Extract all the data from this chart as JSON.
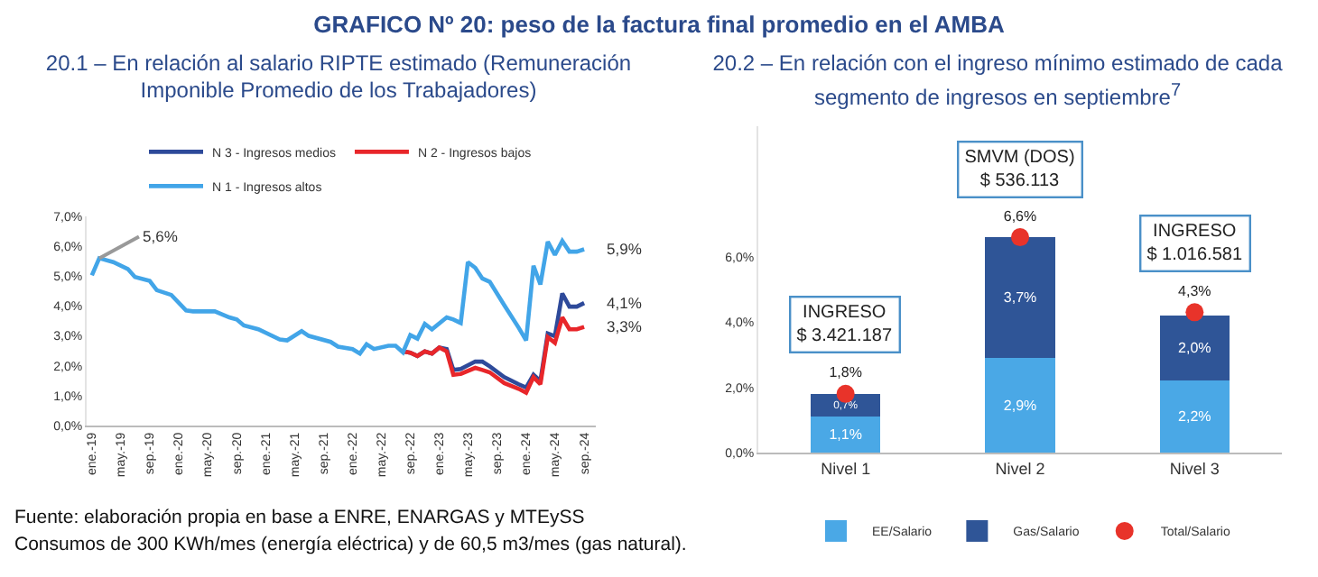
{
  "chart_data": [
    {
      "type": "line",
      "title": "GRAFICO Nº 20: peso de la factura final promedio en el AMBA",
      "subtitle": "20.1 – En relación al salario RIPTE estimado (Remuneración Imponible Promedio de los Trabajadores)",
      "xlim": [
        "2018-12-10",
        "2024-10-20"
      ],
      "xticks": [
        {
          "value": "2019-01",
          "label": "ene.-19"
        },
        {
          "value": "2019-05",
          "label": "may.-19"
        },
        {
          "value": "2019-09",
          "label": "sep.-19"
        },
        {
          "value": "2020-01",
          "label": "ene.-20"
        },
        {
          "value": "2020-05",
          "label": "may.-20"
        },
        {
          "value": "2020-09",
          "label": "sep.-20"
        },
        {
          "value": "2021-01",
          "label": "ene.-21"
        },
        {
          "value": "2021-05",
          "label": "may.-21"
        },
        {
          "value": "2021-09",
          "label": "sep.-21"
        },
        {
          "value": "2022-01",
          "label": "ene.-22"
        },
        {
          "value": "2022-05",
          "label": "may.-22"
        },
        {
          "value": "2022-09",
          "label": "sep.-22"
        },
        {
          "value": "2023-01",
          "label": "ene.-23"
        },
        {
          "value": "2023-05",
          "label": "may.-23"
        },
        {
          "value": "2023-09",
          "label": "sep.-23"
        },
        {
          "value": "2024-01",
          "label": "ene.-24"
        },
        {
          "value": "2024-05",
          "label": "may.-24"
        },
        {
          "value": "2024-09",
          "label": "sep.-24"
        }
      ],
      "ylim": [
        0,
        7
      ],
      "yticks": [
        {
          "value": 0,
          "label": "0,0%"
        },
        {
          "value": 1,
          "label": "1,0%"
        },
        {
          "value": 2,
          "label": "2,0%"
        },
        {
          "value": 3,
          "label": "3,0%"
        },
        {
          "value": 4,
          "label": "4,0%"
        },
        {
          "value": 5,
          "label": "5,0%"
        },
        {
          "value": 6,
          "label": "6,0%"
        },
        {
          "value": 7,
          "label": "7,0%"
        }
      ],
      "grid": false,
      "legend": "top",
      "line_style": "solid",
      "series": [
        {
          "name": "N 3 - Ingresos medios",
          "color": "#2e4a9a",
          "x": [
            "2022-08",
            "2022-09",
            "2022-10",
            "2022-11",
            "2022-12",
            "2023-01",
            "2023-02",
            "2023-03",
            "2023-04",
            "2023-06",
            "2023-07",
            "2023-08",
            "2023-10",
            "2023-12",
            "2024-01",
            "2024-02",
            "2024-03",
            "2024-04",
            "2024-05",
            "2024-06",
            "2024-07",
            "2024-08",
            "2024-09"
          ],
          "values": [
            2.48,
            2.44,
            2.33,
            2.48,
            2.41,
            2.61,
            2.56,
            1.86,
            1.89,
            2.14,
            2.14,
            1.98,
            1.62,
            1.38,
            1.27,
            1.7,
            1.49,
            3.08,
            2.99,
            4.42,
            3.98,
            3.98,
            4.1
          ]
        },
        {
          "name": "N 2 - Ingresos bajos",
          "color": "#e8262a",
          "x": [
            "2022-08",
            "2022-09",
            "2022-10",
            "2022-11",
            "2022-12",
            "2023-01",
            "2023-02",
            "2023-03",
            "2023-04",
            "2023-06",
            "2023-07",
            "2023-08",
            "2023-10",
            "2023-12",
            "2024-01",
            "2024-02",
            "2024-03",
            "2024-04",
            "2024-05",
            "2024-06",
            "2024-07",
            "2024-08",
            "2024-09"
          ],
          "values": [
            2.48,
            2.44,
            2.33,
            2.48,
            2.41,
            2.61,
            2.48,
            1.7,
            1.73,
            1.93,
            1.86,
            1.78,
            1.42,
            1.23,
            1.1,
            1.62,
            1.38,
            2.96,
            2.77,
            3.62,
            3.22,
            3.22,
            3.3
          ]
        },
        {
          "name": "N 1 - Ingresos altos",
          "color": "#42a5e8",
          "x": [
            "2019-01",
            "2019-02",
            "2019-04",
            "2019-06",
            "2019-07",
            "2019-09",
            "2019-10",
            "2019-12",
            "2020-02",
            "2020-03",
            "2020-06",
            "2020-08",
            "2020-09",
            "2020-10",
            "2020-12",
            "2021-03",
            "2021-04",
            "2021-06",
            "2021-07",
            "2021-10",
            "2021-11",
            "2022-01",
            "2022-02",
            "2022-03",
            "2022-04",
            "2022-06",
            "2022-07",
            "2022-08",
            "2022-09",
            "2022-10",
            "2022-11",
            "2022-12",
            "2023-02",
            "2023-03",
            "2023-04",
            "2023-05",
            "2023-06",
            "2023-07",
            "2023-08",
            "2023-10",
            "2023-12",
            "2024-01",
            "2024-02",
            "2024-03",
            "2024-04",
            "2024-05",
            "2024-06",
            "2024-07",
            "2024-08",
            "2024-09"
          ],
          "values": [
            5.03,
            5.6,
            5.47,
            5.24,
            4.97,
            4.84,
            4.53,
            4.37,
            3.85,
            3.82,
            3.82,
            3.62,
            3.55,
            3.35,
            3.22,
            2.88,
            2.85,
            3.16,
            3.0,
            2.8,
            2.64,
            2.56,
            2.41,
            2.72,
            2.56,
            2.67,
            2.67,
            2.45,
            3.03,
            2.91,
            3.4,
            3.22,
            3.62,
            3.55,
            3.43,
            5.47,
            5.28,
            4.92,
            4.81,
            4.03,
            3.27,
            2.85,
            5.35,
            4.72,
            6.15,
            5.71,
            6.18,
            5.82,
            5.82,
            5.9
          ]
        }
      ],
      "annotations": [
        {
          "text": "5,6%",
          "x": "2019-02",
          "y": 5.6
        },
        {
          "text": "5,9%",
          "x": "2024-09",
          "y": 5.9
        },
        {
          "text": "4,1%",
          "x": "2024-09",
          "y": 4.1
        },
        {
          "text": "3,3%",
          "x": "2024-09",
          "y": 3.3
        },
        "Fuente: elaboración propia en base a ENRE, ENARGAS y MTEySS",
        "Consumos de 300 KWh/mes (energía eléctrica) y de 60,5 m3/mes (gas natural)."
      ]
    },
    {
      "type": "bar",
      "subtitle": "20.2 – En relación con el ingreso mínimo estimado de cada segmento de ingresos en septiembre$^{7}$",
      "categories": [
        "Nivel 1",
        "Nivel 2",
        "Nivel 3"
      ],
      "stacked": true,
      "ylim": [
        0,
        10
      ],
      "yticks": [
        {
          "value": 0,
          "label": "0,0%"
        },
        {
          "value": 2,
          "label": "2,0%"
        },
        {
          "value": 4,
          "label": "4,0%"
        },
        {
          "value": 6,
          "label": "6,0%"
        }
      ],
      "grid": false,
      "legend": "bottom",
      "series": [
        {
          "name": "EE/Salario",
          "color": "#4aa8e6",
          "values": [
            1.1,
            2.9,
            2.2
          ],
          "value_labels": [
            "1,1%",
            "2,9%",
            "2,2%"
          ]
        },
        {
          "name": "Gas/Salario",
          "color": "#2f5597",
          "values": [
            0.7,
            3.7,
            2.0
          ],
          "value_labels": [
            "0,7%",
            "3,7%",
            "2,0%"
          ]
        },
        {
          "name": "Total/Salario",
          "type": "scatter",
          "color": "#e8332a",
          "marker": "circle",
          "values": [
            1.8,
            6.6,
            4.3
          ],
          "value_labels": [
            "1,8%",
            "6,6%",
            "4,3%"
          ]
        }
      ],
      "annotations": [
        "INGRESO\n$ 3.421.187",
        "SMVM (DOS)\n$ 536.113",
        "INGRESO\n$ 1.016.581"
      ]
    }
  ]
}
